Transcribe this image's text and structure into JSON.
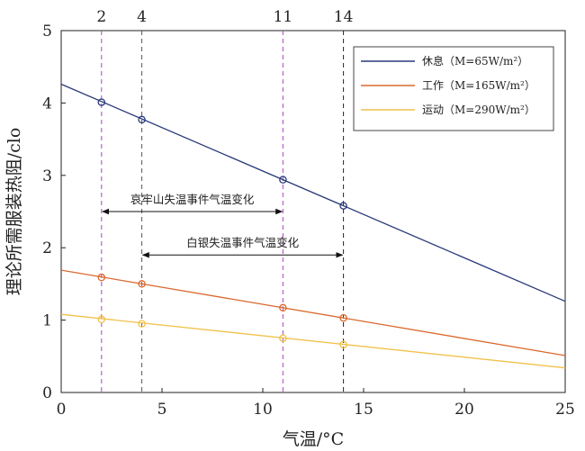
{
  "chart_data": {
    "type": "line",
    "xlabel": "气温/°C",
    "ylabel": "理论所需服装热阻/clo",
    "xlim": [
      0,
      25
    ],
    "ylim": [
      0,
      5
    ],
    "xticks": [
      0,
      5,
      10,
      15,
      20,
      25
    ],
    "yticks": [
      0,
      1,
      2,
      3,
      4,
      5
    ],
    "x2ticks": [
      {
        "value": 2,
        "label": "2"
      },
      {
        "value": 4,
        "label": "4"
      },
      {
        "value": 11,
        "label": "11"
      },
      {
        "value": 14,
        "label": "14"
      }
    ],
    "grid": false,
    "legend_position": "top-right",
    "series": [
      {
        "name": "休息（M=65W/m²）",
        "color": "#2a3a7a",
        "x": [
          0,
          25
        ],
        "y": [
          4.26,
          1.26
        ],
        "markers": [
          {
            "x": 2,
            "y": 4.01
          },
          {
            "x": 4,
            "y": 3.77
          },
          {
            "x": 11,
            "y": 2.94
          },
          {
            "x": 14,
            "y": 2.58
          }
        ]
      },
      {
        "name": "工作（M=165W/m²）",
        "color": "#d9692e",
        "x": [
          0,
          25
        ],
        "y": [
          1.69,
          0.51
        ],
        "markers": [
          {
            "x": 2,
            "y": 1.59
          },
          {
            "x": 4,
            "y": 1.5
          },
          {
            "x": 11,
            "y": 1.17
          },
          {
            "x": 14,
            "y": 1.03
          }
        ]
      },
      {
        "name": "运动（M=290W/m²）",
        "color": "#f0c24a",
        "x": [
          0,
          25
        ],
        "y": [
          1.08,
          0.34
        ],
        "markers": [
          {
            "x": 2,
            "y": 1.01
          },
          {
            "x": 4,
            "y": 0.95
          },
          {
            "x": 11,
            "y": 0.75
          },
          {
            "x": 14,
            "y": 0.66
          }
        ]
      }
    ],
    "vlines": [
      {
        "x": 2,
        "color": "#b040c8"
      },
      {
        "x": 4,
        "color": "#555555"
      },
      {
        "x": 11,
        "color": "#b040c8"
      },
      {
        "x": 14,
        "color": "#222222"
      }
    ],
    "annotations": [
      {
        "text": "哀牢山失温事件气温变化",
        "from": 2,
        "to": 11,
        "y": 2.5
      },
      {
        "text": "白银失温事件气温变化",
        "from": 4,
        "to": 14,
        "y": 1.9
      }
    ]
  }
}
